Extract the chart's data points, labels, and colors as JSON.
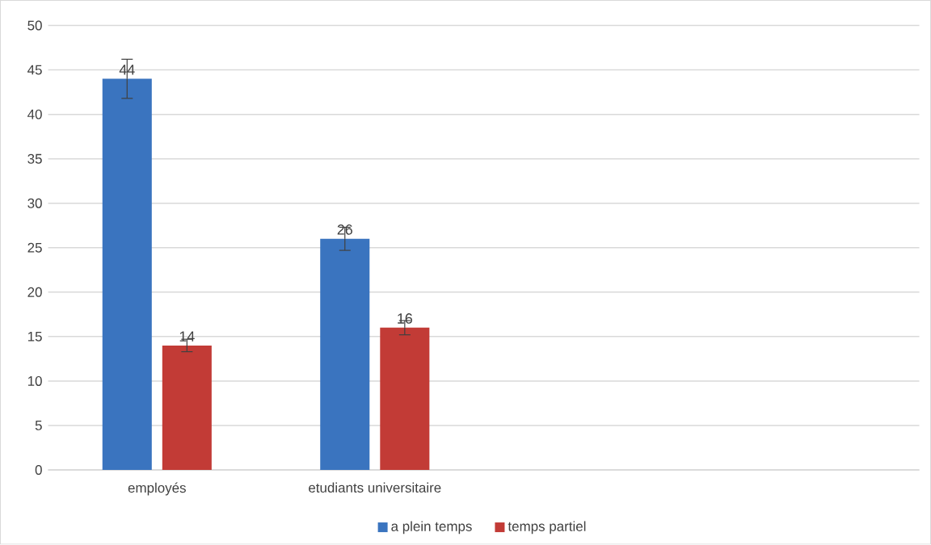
{
  "chart_data": {
    "type": "bar",
    "categories": [
      "employés",
      "etudiants universitaire",
      null,
      null
    ],
    "series": [
      {
        "name": "a plein temps",
        "color": "#3a74bf",
        "values": [
          44,
          26,
          null,
          null
        ],
        "errors": [
          2.2,
          1.3,
          null,
          null
        ]
      },
      {
        "name": "temps partiel",
        "color": "#c23b36",
        "values": [
          14,
          16,
          null,
          null
        ],
        "errors": [
          0.7,
          0.8,
          null,
          null
        ]
      }
    ],
    "ylim": [
      0,
      50
    ],
    "yticks": [
      0,
      5,
      10,
      15,
      20,
      25,
      30,
      35,
      40,
      45,
      50
    ],
    "grid": "y",
    "legend": "bottom",
    "data_labels": true
  }
}
